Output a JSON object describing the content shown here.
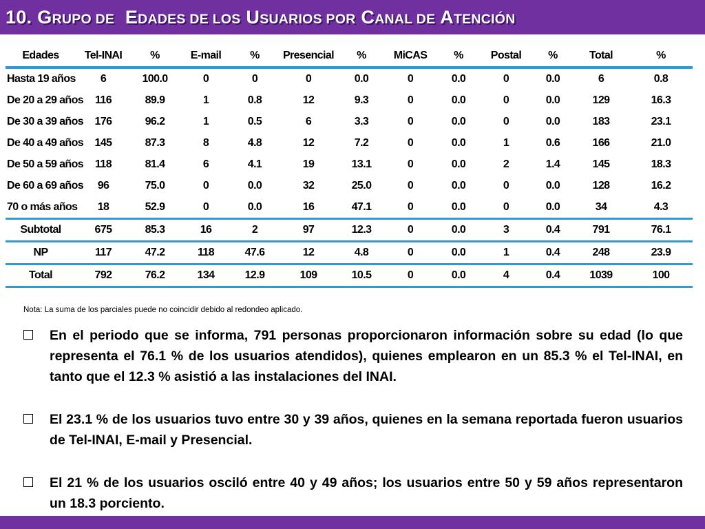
{
  "title": {
    "number": "10.",
    "words": [
      {
        "first": "G",
        "rest": "RUPO DE"
      },
      {
        "first": "E",
        "rest": "DADES DE LOS"
      },
      {
        "first": "U",
        "rest": "SUARIOS POR"
      },
      {
        "first": "C",
        "rest": "ANAL DE"
      },
      {
        "first": "A",
        "rest": "TENCIÓN"
      }
    ]
  },
  "table": {
    "headers": [
      "Edades",
      "Tel-INAI",
      "%",
      "E-mail",
      "%",
      "Presencial",
      "%",
      "MiCAS",
      "%",
      "Postal",
      "%",
      "Total",
      "%"
    ],
    "rows": [
      [
        "Hasta 19 años",
        "6",
        "100.0",
        "0",
        "0",
        "0",
        "0.0",
        "0",
        "0.0",
        "0",
        "0.0",
        "6",
        "0.8"
      ],
      [
        "De 20 a 29 años",
        "116",
        "89.9",
        "1",
        "0.8",
        "12",
        "9.3",
        "0",
        "0.0",
        "0",
        "0.0",
        "129",
        "16.3"
      ],
      [
        "De 30 a 39 años",
        "176",
        "96.2",
        "1",
        "0.5",
        "6",
        "3.3",
        "0",
        "0.0",
        "0",
        "0.0",
        "183",
        "23.1"
      ],
      [
        "De 40 a 49 años",
        "145",
        "87.3",
        "8",
        "4.8",
        "12",
        "7.2",
        "0",
        "0.0",
        "1",
        "0.6",
        "166",
        "21.0"
      ],
      [
        "De 50 a 59 años",
        "118",
        "81.4",
        "6",
        "4.1",
        "19",
        "13.1",
        "0",
        "0.0",
        "2",
        "1.4",
        "145",
        "18.3"
      ],
      [
        "De 60 a 69 años",
        "96",
        "75.0",
        "0",
        "0.0",
        "32",
        "25.0",
        "0",
        "0.0",
        "0",
        "0.0",
        "128",
        "16.2"
      ],
      [
        "70 o más años",
        "18",
        "52.9",
        "0",
        "0.0",
        "16",
        "47.1",
        "0",
        "0.0",
        "0",
        "0.0",
        "34",
        "4.3"
      ]
    ],
    "summary": [
      [
        "Subtotal",
        "675",
        "85.3",
        "16",
        "2",
        "97",
        "12.3",
        "0",
        "0.0",
        "3",
        "0.4",
        "791",
        "76.1"
      ],
      [
        "NP",
        "117",
        "47.2",
        "118",
        "47.6",
        "12",
        "4.8",
        "0",
        "0.0",
        "1",
        "0.4",
        "248",
        "23.9"
      ],
      [
        "Total",
        "792",
        "76.2",
        "134",
        "12.9",
        "109",
        "10.5",
        "0",
        "0.0",
        "4",
        "0.4",
        "1039",
        "100"
      ]
    ]
  },
  "note": "Nota: La suma de los parciales puede no coincidir debido al redondeo aplicado.",
  "bullets": [
    "En el periodo que se informa, 791 personas proporcionaron información sobre su edad (lo que representa el 76.1 % de los usuarios atendidos), quienes emplearon en un 85.3 % el Tel-INAI, en tanto que el 12.3 % asistió a las instalaciones del INAI.",
    "El 23.1 % de los usuarios tuvo entre 30 y 39 años, quienes en la semana reportada fueron usuarios de Tel-INAI, E-mail y Presencial.",
    "El 21 % de los usuarios osciló entre 40 y 49 años; los usuarios entre 50 y 59 años representaron un 18.3 porciento."
  ],
  "colors": {
    "accent_purple": "#7030a0",
    "table_rule_blue": "#2e9bd6"
  }
}
